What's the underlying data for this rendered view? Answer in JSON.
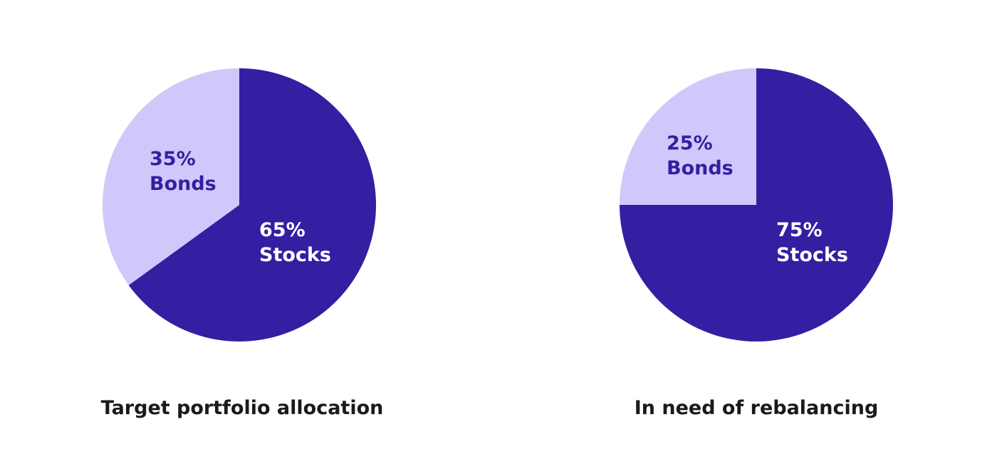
{
  "colors": {
    "stocks": "#331fa1",
    "bonds": "#d0c8fa",
    "stocks_label": "#ffffff",
    "bonds_label": "#331fa1",
    "title": "#1a1a1a",
    "background": "#ffffff"
  },
  "chart_data": [
    {
      "type": "pie",
      "title": "Target portfolio allocation",
      "slices": [
        {
          "name": "Stocks",
          "value": 65,
          "pct_label": "65%",
          "name_label": "Stocks",
          "color_key": "stocks"
        },
        {
          "name": "Bonds",
          "value": 35,
          "pct_label": "35%",
          "name_label": "Bonds",
          "color_key": "bonds"
        }
      ],
      "start": "12 o'clock",
      "direction": "clockwise",
      "legend": "none"
    },
    {
      "type": "pie",
      "title": "In need of rebalancing",
      "slices": [
        {
          "name": "Stocks",
          "value": 75,
          "pct_label": "75%",
          "name_label": "Stocks",
          "color_key": "stocks"
        },
        {
          "name": "Bonds",
          "value": 25,
          "pct_label": "25%",
          "name_label": "Bonds",
          "color_key": "bonds"
        }
      ],
      "start": "12 o'clock",
      "direction": "clockwise",
      "legend": "none"
    }
  ]
}
